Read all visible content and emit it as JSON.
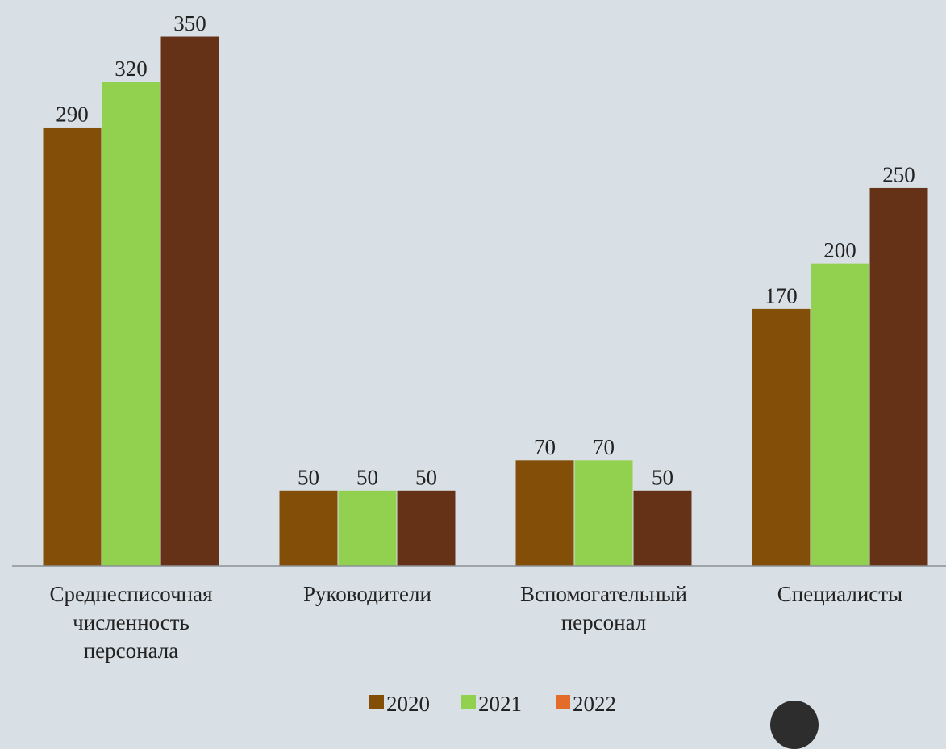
{
  "chart_data": {
    "type": "bar",
    "title": "",
    "xlabel": "",
    "ylabel": "",
    "ylim": [
      0,
      350
    ],
    "grid": false,
    "legend_position": "bottom",
    "categories": [
      [
        "Среднесписочная",
        "численность",
        "персонала"
      ],
      [
        "Руководители"
      ],
      [
        "Вспомогательный",
        "персонал"
      ],
      [
        "Специалисты"
      ]
    ],
    "series": [
      {
        "name": "2020",
        "color": "#834e08",
        "values": [
          290,
          50,
          70,
          170
        ]
      },
      {
        "name": "2021",
        "color": "#92d050",
        "values": [
          320,
          50,
          70,
          200
        ]
      },
      {
        "name": "2022",
        "color": "#e46c2a",
        "values": [
          null,
          null,
          null,
          null
        ]
      }
    ],
    "drawn_bars": [
      {
        "label": "350",
        "value": 350,
        "color": "#663217",
        "category": 0
      },
      {
        "label": "50",
        "value": 50,
        "color": "#663217",
        "category": 1
      },
      {
        "label": "50",
        "value": 50,
        "color": "#663217",
        "category": 2
      },
      {
        "label": "250",
        "value": 250,
        "color": "#663217",
        "category": 3
      }
    ]
  }
}
